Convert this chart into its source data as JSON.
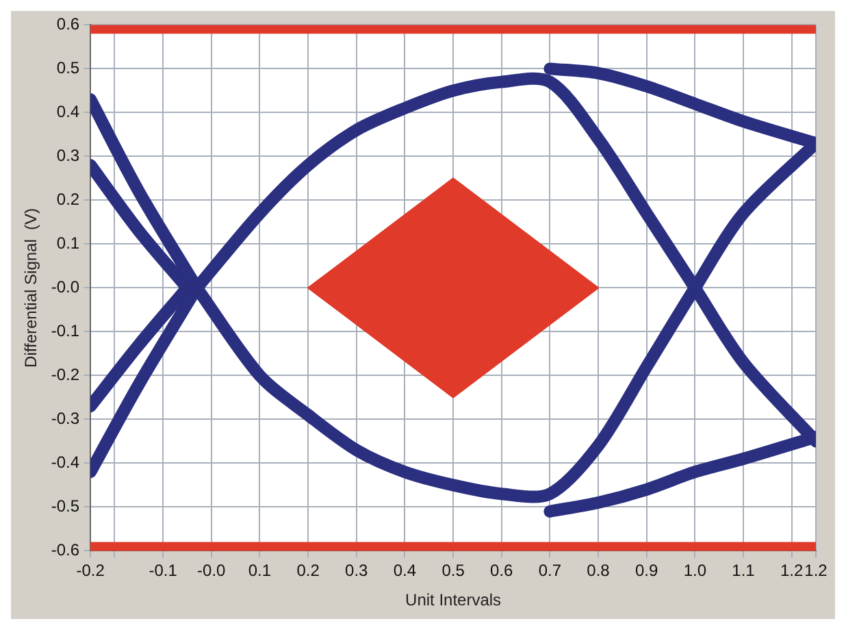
{
  "chart_data": {
    "type": "line",
    "xlabel": "Unit Intervals",
    "ylabel": "Differential Signal  (V)",
    "xlim": [
      -0.25,
      1.25
    ],
    "xticks": [
      {
        "value": -0.25,
        "label": "-0.2"
      },
      {
        "value": -0.2,
        "label": null
      },
      -0.1,
      {
        "value": 0,
        "label": "-0.0"
      },
      0.1,
      0.2,
      0.3,
      0.4,
      0.5,
      0.6,
      0.7,
      0.8,
      0.9,
      {
        "value": 1,
        "label": "1.0"
      },
      1.1,
      1.2,
      {
        "value": 1.25,
        "label": "1.2"
      }
    ],
    "ylim": [
      -0.6,
      0.6
    ],
    "yticks": [
      -0.6,
      -0.5,
      -0.4,
      -0.3,
      -0.2,
      -0.1,
      {
        "value": 0,
        "label": "-0.0"
      },
      0.1,
      0.2,
      0.3,
      0.4,
      0.5,
      0.6
    ],
    "grid": true,
    "legend": false,
    "marker": "none",
    "line_style": "solid",
    "bands": [
      {
        "axis": "y",
        "from": 0.58,
        "to": 0.6,
        "color": "#e03a2a"
      },
      {
        "axis": "y",
        "from": -0.6,
        "to": -0.58,
        "color": "#e03a2a"
      }
    ],
    "series": [
      {
        "type": "area",
        "color": "#e03a2a",
        "x": [
          0.2,
          0.5,
          0.8,
          0.5,
          0.2
        ],
        "values": [
          0,
          0.25,
          0,
          -0.25,
          0
        ]
      },
      {
        "color": "#2a2f80",
        "x": [
          -0.03,
          0.1,
          0.2,
          0.3,
          0.4,
          0.5,
          0.6,
          0.7,
          0.8,
          0.9,
          1.0,
          1.1,
          1.25
        ],
        "values": [
          0,
          0.17,
          0.28,
          0.36,
          0.41,
          0.45,
          0.47,
          0.47,
          0.34,
          0.17,
          0,
          -0.17,
          -0.35
        ]
      },
      {
        "color": "#2a2f80",
        "x": [
          -0.03,
          0.1,
          0.2,
          0.3,
          0.4,
          0.5,
          0.6,
          0.7,
          0.8,
          0.9,
          1.0,
          1.1,
          1.25
        ],
        "values": [
          0,
          -0.2,
          -0.29,
          -0.37,
          -0.42,
          -0.45,
          -0.47,
          -0.47,
          -0.36,
          -0.18,
          0,
          0.17,
          0.33
        ]
      },
      {
        "color": "#2a2f80",
        "x": [
          -0.25,
          -0.15,
          -0.03
        ],
        "values": [
          0.43,
          0.22,
          0
        ]
      },
      {
        "color": "#2a2f80",
        "x": [
          -0.25,
          -0.15,
          -0.03
        ],
        "values": [
          -0.42,
          -0.22,
          0
        ]
      },
      {
        "color": "#2a2f80",
        "x": [
          -0.25,
          -0.15,
          -0.05
        ],
        "values": [
          0.28,
          0.13,
          0
        ]
      },
      {
        "color": "#2a2f80",
        "x": [
          -0.25,
          -0.15,
          -0.05
        ],
        "values": [
          -0.27,
          -0.13,
          0
        ]
      },
      {
        "color": "#2a2f80",
        "x": [
          0.7,
          0.8,
          0.9,
          1.0,
          1.1,
          1.25
        ],
        "values": [
          0.5,
          0.49,
          0.46,
          0.42,
          0.38,
          0.33
        ]
      },
      {
        "color": "#2a2f80",
        "x": [
          0.7,
          0.8,
          0.9,
          1.0,
          1.1,
          1.25
        ],
        "values": [
          -0.51,
          -0.49,
          -0.46,
          -0.42,
          -0.39,
          -0.34
        ]
      }
    ]
  }
}
